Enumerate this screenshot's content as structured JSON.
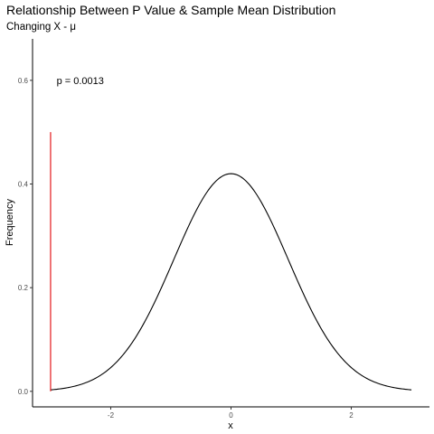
{
  "chart_data": {
    "type": "line",
    "title": "Relationship Between P Value & Sample Mean Distribution",
    "subtitle": "Changing X - μ",
    "xlabel": "x",
    "ylabel": "Frequency",
    "xlim": [
      -3.3,
      3.3
    ],
    "ylim": [
      -0.03,
      0.68
    ],
    "x_ticks": [
      -2,
      0,
      2
    ],
    "x_tick_labels": [
      "-2",
      "0",
      "2"
    ],
    "y_ticks": [
      0.0,
      0.2,
      0.4,
      0.6
    ],
    "y_tick_labels": [
      "0.0",
      "0.2",
      "0.4",
      "0.6"
    ],
    "grid": false,
    "series": [
      {
        "style": "normal-density-curve",
        "color": "#000000",
        "mean": 0,
        "sd": 0.95,
        "x_range": [
          -3,
          3
        ]
      }
    ],
    "reference_line": {
      "x": -3,
      "y_from": 0,
      "y_to": 0.5,
      "color": "#e31a1c"
    },
    "annotation": {
      "text": "p = 0.0013",
      "x": -2.9,
      "y": 0.6
    }
  }
}
